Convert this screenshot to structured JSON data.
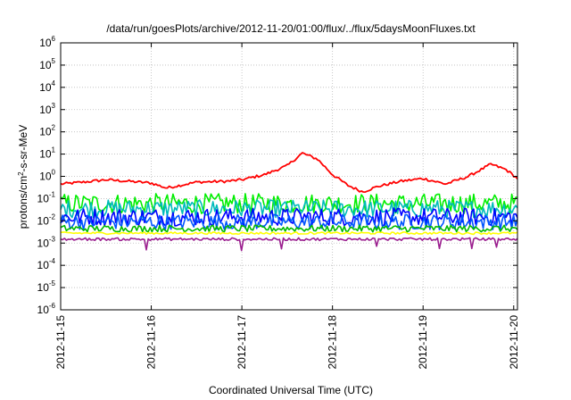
{
  "chart_data": {
    "type": "line",
    "title": "/data/run/goesPlots/archive/2012-11-20/01:00/flux/../flux/5daysMoonFluxes.txt",
    "xlabel": "Coordinated Universal Time (UTC)",
    "ylabel": {
      "prefix": "protons/cm",
      "sup": "2",
      "suffix": "-s-sr-MeV"
    },
    "x_range": [
      "2012-11-15T00:00",
      "2012-11-20T01:00"
    ],
    "x_ticks": [
      "2012-11-15",
      "2012-11-16",
      "2012-11-17",
      "2012-11-18",
      "2012-11-19",
      "2012-11-20"
    ],
    "y_scale": "log",
    "ylim": [
      1e-06,
      1000000.0
    ],
    "y_ticks": [
      {
        "base": "10",
        "exp": "-6"
      },
      {
        "base": "10",
        "exp": "-5"
      },
      {
        "base": "10",
        "exp": "-4"
      },
      {
        "base": "10",
        "exp": "-3"
      },
      {
        "base": "10",
        "exp": "-2"
      },
      {
        "base": "10",
        "exp": "-1"
      },
      {
        "base": "10",
        "exp": "0"
      },
      {
        "base": "10",
        "exp": "1"
      },
      {
        "base": "10",
        "exp": "2"
      },
      {
        "base": "10",
        "exp": "3"
      },
      {
        "base": "10",
        "exp": "4"
      },
      {
        "base": "10",
        "exp": "5"
      },
      {
        "base": "10",
        "exp": "6"
      }
    ],
    "grid": true,
    "legend": "none",
    "series": [
      {
        "color": "#ff0000",
        "points": [
          [
            "2012-11-15T00:00",
            0.45
          ],
          [
            "2012-11-15T06:00",
            0.55
          ],
          [
            "2012-11-15T12:00",
            0.7
          ],
          [
            "2012-11-15T18:00",
            0.6
          ],
          [
            "2012-11-16T00:00",
            0.5
          ],
          [
            "2012-11-16T04:00",
            0.3
          ],
          [
            "2012-11-16T12:00",
            0.55
          ],
          [
            "2012-11-16T20:00",
            0.6
          ],
          [
            "2012-11-17T00:00",
            0.7
          ],
          [
            "2012-11-17T06:00",
            1.2
          ],
          [
            "2012-11-17T12:00",
            3
          ],
          [
            "2012-11-17T16:00",
            11
          ],
          [
            "2012-11-17T20:00",
            6
          ],
          [
            "2012-11-18T00:00",
            1.2
          ],
          [
            "2012-11-18T04:00",
            0.4
          ],
          [
            "2012-11-18T08:00",
            0.2
          ],
          [
            "2012-11-18T12:00",
            0.35
          ],
          [
            "2012-11-18T18:00",
            0.6
          ],
          [
            "2012-11-19T00:00",
            0.8
          ],
          [
            "2012-11-19T06:00",
            0.45
          ],
          [
            "2012-11-19T12:00",
            1.0
          ],
          [
            "2012-11-19T18:00",
            3.5
          ],
          [
            "2012-11-19T22:00",
            2
          ],
          [
            "2012-11-20T01:00",
            0.8
          ]
        ]
      },
      {
        "color": "#00ee00",
        "mean": 0.06,
        "jitter": 0.45,
        "spike_tail": false
      },
      {
        "color": "#00bbbb",
        "mean": 0.035,
        "jitter": 0.4,
        "spike_tail": false
      },
      {
        "color": "#0000ff",
        "mean": 0.015,
        "jitter": 0.4,
        "spike_tail": false
      },
      {
        "color": "#0055ff",
        "mean": 0.009,
        "jitter": 0.35,
        "spike_tail": false
      },
      {
        "color": "#00bb00",
        "mean": 0.0045,
        "jitter": 0.15,
        "spike_tail": false
      },
      {
        "color": "#ffff00",
        "mean": 0.0028,
        "jitter": 0.05,
        "spike_tail": false
      },
      {
        "color": "#9b1f8f",
        "mean": 0.0015,
        "jitter": 0.06,
        "spike_tail": true
      }
    ]
  }
}
